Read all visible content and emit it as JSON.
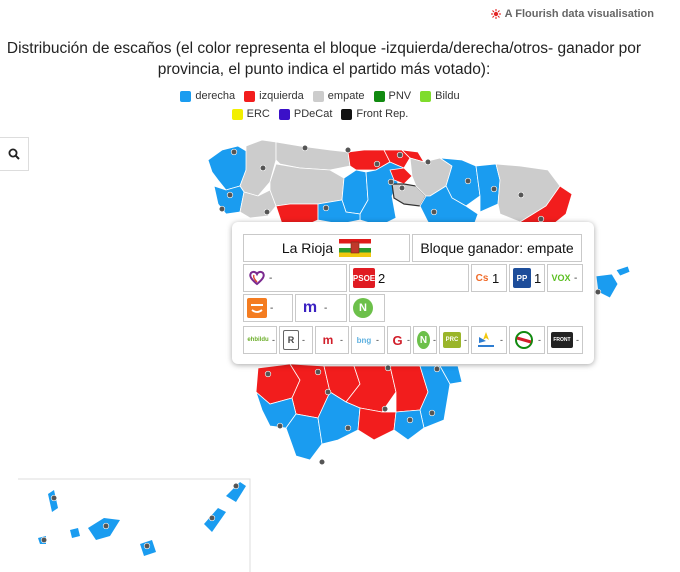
{
  "credit": "A Flourish data visualisation",
  "title_line1": "Distribución de escaños (el color representa el bloque -izquierda/derecha/otros- ganador por",
  "title_line2": "provincia, el punto indica el partido más votado):",
  "legend": [
    {
      "label": "derecha",
      "color": "#1a9cf0"
    },
    {
      "label": "izquierda",
      "color": "#f21d1d"
    },
    {
      "label": "empate",
      "color": "#cccccc"
    },
    {
      "label": "PNV",
      "color": "#118a10"
    },
    {
      "label": "Bildu",
      "color": "#7fdc2c"
    },
    {
      "label": "ERC",
      "color": "#f2ef00"
    },
    {
      "label": "PDeCat",
      "color": "#3b10c8"
    },
    {
      "label": "Front Rep.",
      "color": "#111111"
    }
  ],
  "search_icon": "search-icon",
  "popup": {
    "province": "La Rioja",
    "bloc": "Bloque ganador: empate",
    "flag_icon": "la-rioja-flag-icon",
    "row1": [
      {
        "icon": "podemos-heart-icon",
        "seats": "-"
      },
      {
        "icon": "psoe-logo",
        "text": "PSOE",
        "seats": "2"
      },
      {
        "icon": "cs-logo",
        "text": "Cs",
        "seats": "1"
      },
      {
        "icon": "pp-logo",
        "text": "PP",
        "seats": "1"
      },
      {
        "icon": "vox-logo",
        "text": "VOX",
        "seats": "-"
      }
    ],
    "row2": [
      {
        "icon": "mas-pais-logo",
        "seats": "-"
      },
      {
        "icon": "mes-logo",
        "text": "m",
        "seats": "-"
      },
      {
        "icon": "na-plus-logo",
        "text": "N",
        "seats": ""
      }
    ],
    "row3": [
      {
        "icon": "ehbildu-logo",
        "text": "ehbildu",
        "seats": "-"
      },
      {
        "icon": "erc-logo",
        "text": "R",
        "seats": "-"
      },
      {
        "icon": "jxcat-logo",
        "text": "m",
        "seats": "-"
      },
      {
        "icon": "bng-logo",
        "text": "bng",
        "seats": "-"
      },
      {
        "icon": "cc-logo",
        "text": "G",
        "seats": "-"
      },
      {
        "icon": "navarra-suma-logo",
        "text": "N",
        "seats": "-"
      },
      {
        "icon": "prc-logo",
        "text": "PRC",
        "seats": "-"
      },
      {
        "icon": "coalicion-canaria-logo",
        "text": "",
        "seats": "-"
      },
      {
        "icon": "pnv-logo",
        "text": "",
        "seats": "-"
      },
      {
        "icon": "front-republica-logo",
        "text": "FRONT",
        "seats": "-"
      }
    ]
  }
}
